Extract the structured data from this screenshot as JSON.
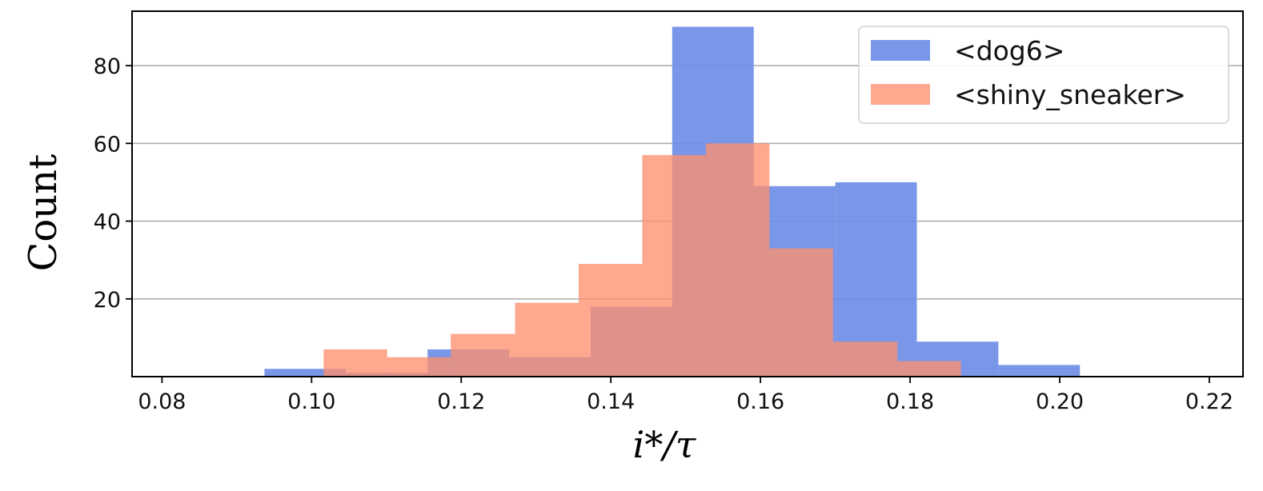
{
  "chart_data": {
    "type": "histogram",
    "xlabel": "i*/τ",
    "ylabel": "Count",
    "xlim": [
      0.076,
      0.2245
    ],
    "ylim": [
      0,
      94
    ],
    "xticks": [
      "0.08",
      "0.10",
      "0.12",
      "0.14",
      "0.16",
      "0.18",
      "0.20",
      "0.22"
    ],
    "xtick_values": [
      0.08,
      0.1,
      0.12,
      0.14,
      0.16,
      0.18,
      0.2,
      0.22
    ],
    "yticks": [
      "20",
      "40",
      "60",
      "80"
    ],
    "ytick_values": [
      20,
      40,
      60,
      80
    ],
    "grid": "horizontal",
    "legend_position": "top-right",
    "series": [
      {
        "name": "<dog6>",
        "color": "#6e8de6",
        "edges": [
          0.0937,
          0.1046,
          0.1155,
          0.1264,
          0.1373,
          0.1482,
          0.1591,
          0.17,
          0.1809,
          0.1918,
          0.2027
        ],
        "counts": [
          2,
          1,
          7,
          5,
          18,
          90,
          49,
          50,
          9,
          3
        ]
      },
      {
        "name": "<shiny_sneaker>",
        "color": "#fc9070",
        "edges": [
          0.1016,
          0.1101,
          0.1186,
          0.1272,
          0.1357,
          0.1442,
          0.1527,
          0.1612,
          0.1697,
          0.1783,
          0.1868
        ],
        "counts": [
          7,
          5,
          11,
          19,
          29,
          57,
          60,
          33,
          9,
          4
        ]
      }
    ]
  }
}
